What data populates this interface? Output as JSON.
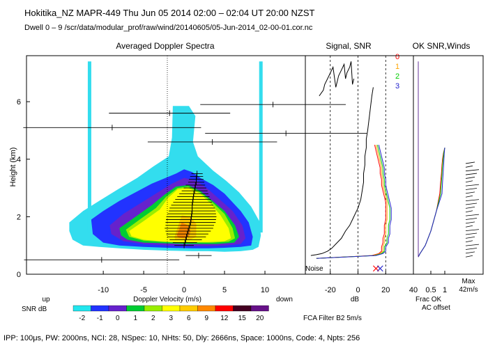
{
  "header": {
    "line1": "Hokitika_NZ   MAPR-449   Thu Jun 05 2014 02:00 – 02:04 UT 20:00 NZST",
    "line2": "Dwell   0  –   9    /scr/data/modular_prof/raw/wind/20140605/05-Jun-2014_02-00-01.cor.nc"
  },
  "footer": "IPP: 100μs,  PW: 2000ns,  NCI:  28,  NSpec: 10,  NHts: 50,  Dly: 2666ns,   Space: 1000ns,  Code: 4,  Npts: 256",
  "chart_data": [
    {
      "type": "heatmap",
      "title": "Averaged Doppler Spectra",
      "xlabel": "Doppler Velocity (m/s)",
      "ylabel": "Height (km)",
      "x_ticks": [
        -10,
        -5,
        0,
        5,
        10
      ],
      "y_ticks": [
        0,
        2,
        4,
        6
      ],
      "xlim": [
        -19.5,
        15
      ],
      "ylim": [
        0,
        7.6
      ],
      "up_label": "up",
      "down_label": "down",
      "colorbar": {
        "label": "SNR dB",
        "levels": [
          "-2",
          "-1",
          "0",
          "1",
          "2",
          "3",
          "6",
          "9",
          "12",
          "15",
          "20"
        ],
        "colors": [
          "#22e6ee",
          "#2233ff",
          "#6622cc",
          "#00cc33",
          "#99ee00",
          "#ffff00",
          "#ffcc00",
          "#ff8800",
          "#ff0000",
          "#440022",
          "#661188"
        ]
      },
      "contours": [
        {
          "level": "-2",
          "color": "#33ddee",
          "x": [
            -14.2,
            -12.5,
            -10.5,
            -8.2,
            -5.8,
            -3.8,
            -1.9,
            -1.5,
            -1.4,
            0.6,
            1.4,
            1.1,
            1.7,
            3.6,
            5.2,
            6.8,
            8.3,
            9.3,
            9.5,
            9.2,
            8.5,
            7,
            5,
            3,
            1,
            -2,
            -5,
            -8,
            -10.5,
            -12.5,
            -13.8,
            -14.2,
            -14.2
          ],
          "y": [
            1.8,
            2.2,
            2.55,
            2.95,
            3.35,
            3.75,
            4.1,
            4.75,
            5.85,
            5.85,
            5.5,
            4.6,
            4.1,
            3.6,
            3.25,
            2.85,
            2.35,
            1.85,
            1.35,
            0.95,
            0.85,
            0.8,
            0.78,
            0.8,
            0.8,
            0.82,
            0.85,
            0.9,
            0.95,
            1.0,
            1.2,
            1.5,
            1.8
          ]
        },
        {
          "level": "-1",
          "color": "#2233ff",
          "x": [
            -11.5,
            -10,
            -8,
            -6,
            -4,
            -1,
            0,
            1,
            2,
            3.6,
            5,
            6,
            7,
            8,
            8.5,
            8.3,
            7,
            5,
            3,
            1,
            -2,
            -5,
            -8,
            -10,
            -11.3,
            -11.5
          ],
          "y": [
            1.9,
            2.2,
            2.55,
            2.85,
            3.15,
            3.5,
            3.65,
            3.55,
            3.35,
            3.1,
            2.8,
            2.5,
            2.2,
            1.8,
            1.3,
            1.0,
            0.95,
            0.92,
            0.9,
            0.9,
            0.92,
            0.95,
            1.0,
            1.1,
            1.4,
            1.9
          ]
        },
        {
          "level": "0",
          "color": "#6622cc",
          "x": [
            -9.2,
            -7.5,
            -5.5,
            -3.5,
            -1.5,
            0,
            1.5,
            3,
            4.6,
            6,
            7.2,
            7.6,
            7,
            5,
            3,
            1,
            -2,
            -5,
            -7.5,
            -9,
            -9.2
          ],
          "y": [
            1.7,
            2.1,
            2.45,
            2.8,
            3.15,
            3.35,
            3.25,
            2.95,
            2.55,
            2.2,
            1.7,
            1.25,
            1.05,
            1.0,
            0.98,
            0.98,
            1.0,
            1.05,
            1.15,
            1.4,
            1.7
          ]
        },
        {
          "level": "1",
          "color": "#00cc33",
          "x": [
            -8,
            -6,
            -4,
            -2.5,
            -1,
            0.5,
            2,
            3.5,
            5,
            6.3,
            6.8,
            6.2,
            4,
            2,
            0,
            -2,
            -5,
            -7,
            -7.8,
            -8
          ],
          "y": [
            1.6,
            2.0,
            2.4,
            2.75,
            3.05,
            3.1,
            2.9,
            2.55,
            2.2,
            1.7,
            1.3,
            1.1,
            1.05,
            1.05,
            1.05,
            1.07,
            1.1,
            1.2,
            1.35,
            1.6
          ]
        },
        {
          "level": "2",
          "color": "#99ee00",
          "x": [
            -7.2,
            -5.5,
            -3.5,
            -2.2,
            -0.8,
            0.5,
            2,
            3.5,
            5,
            6,
            6.3,
            5.5,
            3.5,
            1.5,
            -0.5,
            -2.5,
            -5,
            -6.8,
            -7.2
          ],
          "y": [
            1.55,
            1.9,
            2.3,
            2.7,
            3.0,
            3.05,
            2.85,
            2.5,
            2.1,
            1.6,
            1.25,
            1.13,
            1.1,
            1.1,
            1.1,
            1.12,
            1.17,
            1.3,
            1.55
          ]
        },
        {
          "level": "3",
          "color": "#ffff00",
          "x": [
            -6.8,
            -5,
            -3,
            -2,
            -0.8,
            0.5,
            2,
            3.3,
            4.5,
            5.5,
            5.8,
            5,
            3,
            1,
            -1,
            -3,
            -5,
            -6.5,
            -6.8
          ],
          "y": [
            1.5,
            1.85,
            2.25,
            2.65,
            2.95,
            3.0,
            2.8,
            2.45,
            2.05,
            1.6,
            1.25,
            1.15,
            1.12,
            1.12,
            1.12,
            1.15,
            1.2,
            1.32,
            1.5
          ]
        },
        {
          "level": "6",
          "color": "#ffcc00",
          "x": [
            -1.2,
            -0.3,
            0.8,
            1.5,
            1.5,
            0.8,
            -0.3,
            -1.1,
            -1.2
          ],
          "y": [
            1.3,
            2.05,
            2.0,
            1.75,
            1.3,
            1.2,
            1.18,
            1.2,
            1.3
          ]
        },
        {
          "level": "9",
          "color": "#ff8800",
          "x": [
            -0.9,
            -0.3,
            0.5,
            0.8,
            0.6,
            0,
            -0.7,
            -0.9
          ],
          "y": [
            1.35,
            1.8,
            1.7,
            1.5,
            1.3,
            1.25,
            1.27,
            1.35
          ]
        }
      ],
      "sky_bands": [
        {
          "x": -11.7,
          "y0": 1.45,
          "y1": 7.4
        },
        {
          "x": 9.5,
          "y0": 1.45,
          "y1": 7.4
        }
      ],
      "moments": [
        {
          "h": 0.5,
          "v": -10.2,
          "w": 9.6
        },
        {
          "h": 0.65,
          "v": 1.8,
          "w": 1.6
        },
        {
          "h": 1.0,
          "v": 0.0,
          "w": 1.2
        },
        {
          "h": 1.1,
          "v": 0.1,
          "w": 1.5
        },
        {
          "h": 1.2,
          "v": 0.2,
          "w": 2.0
        },
        {
          "h": 1.3,
          "v": 0.3,
          "w": 2.4
        },
        {
          "h": 1.4,
          "v": 0.4,
          "w": 2.6
        },
        {
          "h": 1.5,
          "v": 0.5,
          "w": 2.8
        },
        {
          "h": 1.6,
          "v": 0.6,
          "w": 3.0
        },
        {
          "h": 1.7,
          "v": 0.7,
          "w": 3.0
        },
        {
          "h": 1.8,
          "v": 0.8,
          "w": 3.1
        },
        {
          "h": 1.9,
          "v": 0.85,
          "w": 3.1
        },
        {
          "h": 2.0,
          "v": 0.9,
          "w": 3.1
        },
        {
          "h": 2.1,
          "v": 0.95,
          "w": 3.0
        },
        {
          "h": 2.2,
          "v": 1.0,
          "w": 2.9
        },
        {
          "h": 2.3,
          "v": 1.0,
          "w": 2.8
        },
        {
          "h": 2.4,
          "v": 1.0,
          "w": 2.6
        },
        {
          "h": 2.5,
          "v": 1.05,
          "w": 2.4
        },
        {
          "h": 2.6,
          "v": 1.1,
          "w": 2.2
        },
        {
          "h": 2.7,
          "v": 1.15,
          "w": 2.0
        },
        {
          "h": 2.8,
          "v": 1.2,
          "w": 1.8
        },
        {
          "h": 2.9,
          "v": 1.3,
          "w": 1.6
        },
        {
          "h": 3.0,
          "v": 1.35,
          "w": 1.4
        },
        {
          "h": 3.1,
          "v": 1.4,
          "w": 1.2
        },
        {
          "h": 3.2,
          "v": 1.5,
          "w": 1.0
        },
        {
          "h": 3.3,
          "v": 1.5,
          "w": 0.9
        },
        {
          "h": 3.4,
          "v": 1.55,
          "w": 0.8
        },
        {
          "h": 3.5,
          "v": 1.6,
          "w": 0.7
        },
        {
          "h": 4.6,
          "v": 3.5,
          "w": 8.0
        },
        {
          "h": 4.9,
          "v": 12.6,
          "w": 10.0
        },
        {
          "h": 5.1,
          "v": -8.9,
          "w": 11.0
        },
        {
          "h": 5.6,
          "v": -1.8,
          "w": 7.5
        },
        {
          "h": 5.9,
          "v": 11.0,
          "w": 9.0
        }
      ]
    },
    {
      "type": "line",
      "title": "Signal, SNR",
      "xlabel": "dB",
      "x_ticks": [
        -20,
        0,
        20,
        40
      ],
      "xlim": [
        -38,
        40
      ],
      "ylim": [
        0,
        7.6
      ],
      "noise_label": "Noise",
      "dashed_verticals": [
        -20,
        0,
        20
      ],
      "series_labels": [
        "0",
        "1",
        "2",
        "3"
      ],
      "series_colors": [
        "#ff0000",
        "#ffa500",
        "#00cc00",
        "#2222cc"
      ],
      "signal": {
        "color": "#000000",
        "x": [
          -34,
          -30,
          -26,
          -22,
          -19,
          -16,
          -12,
          -9,
          -6,
          -4,
          -2,
          0,
          2,
          3,
          4,
          4,
          5,
          5,
          6,
          6,
          7,
          8,
          9,
          10,
          11
        ],
        "y": [
          0.65,
          0.68,
          0.72,
          0.8,
          0.9,
          1.05,
          1.25,
          1.5,
          1.7,
          1.9,
          2.1,
          2.3,
          2.6,
          2.9,
          3.2,
          3.5,
          3.8,
          4.1,
          4.4,
          4.7,
          5,
          5.4,
          5.8,
          6.2,
          6.5
        ]
      },
      "snr_series": [
        {
          "label": "0",
          "color": "#ff0000",
          "x": [
            -30,
            10,
            15,
            17,
            17,
            18,
            18,
            19,
            19,
            19,
            20,
            20,
            20,
            20,
            19,
            18,
            17,
            17,
            16,
            16,
            15,
            14,
            13,
            12
          ],
          "y": [
            0.55,
            0.65,
            0.72,
            0.8,
            0.95,
            1.1,
            1.25,
            1.4,
            1.55,
            1.7,
            1.9,
            2.1,
            2.3,
            2.5,
            2.7,
            2.9,
            3.1,
            3.3,
            3.5,
            3.7,
            3.9,
            4.1,
            4.3,
            4.5
          ]
        },
        {
          "label": "1",
          "color": "#ffa500",
          "x": [
            -30,
            11,
            16,
            18,
            18,
            19,
            19,
            20,
            20,
            20,
            21,
            21,
            21,
            21,
            20,
            19,
            18,
            18,
            17,
            17,
            16,
            15,
            14,
            13
          ],
          "y": [
            0.55,
            0.65,
            0.72,
            0.8,
            0.95,
            1.1,
            1.25,
            1.4,
            1.55,
            1.7,
            1.9,
            2.1,
            2.3,
            2.5,
            2.7,
            2.9,
            3.1,
            3.3,
            3.5,
            3.7,
            3.9,
            4.1,
            4.3,
            4.5
          ]
        },
        {
          "label": "2",
          "color": "#00cc00",
          "x": [
            -30,
            12,
            17,
            19,
            19,
            21,
            21,
            22,
            22,
            22,
            23,
            23,
            23,
            22,
            21,
            20,
            19,
            19,
            18,
            18,
            17,
            16,
            15,
            14
          ],
          "y": [
            0.55,
            0.65,
            0.72,
            0.8,
            0.95,
            1.1,
            1.25,
            1.4,
            1.55,
            1.7,
            1.9,
            2.1,
            2.3,
            2.5,
            2.7,
            2.9,
            3.1,
            3.3,
            3.5,
            3.7,
            3.9,
            4.1,
            4.3,
            4.5
          ]
        },
        {
          "label": "3",
          "color": "#2222cc",
          "x": [
            -30,
            13,
            18,
            20,
            20,
            22,
            22,
            23,
            23,
            23,
            24,
            24,
            24,
            23,
            22,
            21,
            20,
            20,
            19,
            19,
            18,
            17,
            16,
            15
          ],
          "y": [
            0.55,
            0.65,
            0.72,
            0.8,
            0.95,
            1.1,
            1.25,
            1.4,
            1.55,
            1.7,
            1.9,
            2.1,
            2.3,
            2.5,
            2.7,
            2.9,
            3.1,
            3.3,
            3.5,
            3.7,
            3.9,
            4.1,
            4.3,
            4.5
          ]
        }
      ],
      "upper_signal": {
        "x": [
          -28,
          -25,
          -24,
          -22,
          -20,
          -18,
          -16,
          -15,
          -14,
          -12,
          -10,
          -9,
          -8,
          -6,
          -5,
          -4,
          -3
        ],
        "y": [
          6.2,
          6.4,
          6.6,
          6.8,
          7.0,
          7.2,
          6.5,
          6.7,
          6.9,
          7.1,
          7.3,
          6.8,
          7.0,
          7.2,
          7.4,
          6.6,
          6.8
        ]
      },
      "markers": {
        "x": [
          13,
          16
        ],
        "y": [
          0.2,
          0.2
        ]
      },
      "footer_text": "FCA Filter B2   5m/s"
    },
    {
      "type": "line",
      "title": "OK SNR,Winds",
      "x_ticks": [
        "0.5",
        "1"
      ],
      "frac_label": "Frac OK",
      "ac_offset_label": "AC offset",
      "max_label": "Max",
      "max_value": "42m/s",
      "frac_ok": [
        {
          "color": "#ff0000",
          "x": [
            0.05,
            0.1,
            0.3,
            0.5,
            0.7,
            0.82,
            0.85,
            0.88,
            0.9,
            0.92,
            0.95,
            1.0
          ],
          "y": [
            0.6,
            0.7,
            1.0,
            1.5,
            2.2,
            2.8,
            3.2,
            3.5,
            3.8,
            4.0,
            4.2,
            4.4
          ]
        },
        {
          "color": "#00cc00",
          "x": [
            0.05,
            0.1,
            0.3,
            0.5,
            0.7,
            0.85,
            0.88,
            0.9,
            0.92,
            0.94,
            0.96,
            1.0
          ],
          "y": [
            0.6,
            0.7,
            1.0,
            1.5,
            2.2,
            2.8,
            3.2,
            3.5,
            3.8,
            4.0,
            4.2,
            4.4
          ]
        },
        {
          "color": "#2222cc",
          "x": [
            0.05,
            0.1,
            0.3,
            0.5,
            0.7,
            0.9,
            0.92,
            0.94,
            0.96,
            0.97,
            0.98,
            1.0
          ],
          "y": [
            0.6,
            0.7,
            1.0,
            1.5,
            2.2,
            2.8,
            3.2,
            3.5,
            3.8,
            4.0,
            4.2,
            4.4
          ]
        }
      ],
      "ac_offset_line": {
        "x": 0.05,
        "y0": 0.6,
        "y1": 7.4
      }
    }
  ]
}
